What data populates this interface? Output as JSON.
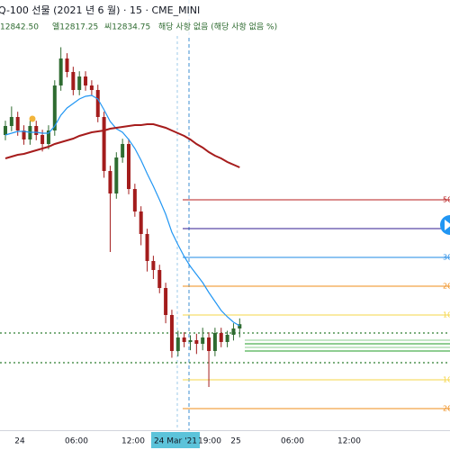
{
  "chart_data": {
    "type": "candlestick",
    "title": "Q-100 선물 (2021 년 6 월) · 15 · CME_MINI",
    "legend_values": [
      "12842.50",
      "엘12817.25",
      "씨12834.75",
      "해당 사항 없음 (해당 사항 없음 %)"
    ],
    "xtick_labels": [
      "24",
      "06:00",
      "12:00",
      "19:00",
      "25",
      "06:00",
      "12:00"
    ],
    "cursor_label": "24 Mar '21",
    "ylim": [
      12703,
      13267
    ],
    "up_color": "#2e6b30",
    "down_color": "#a31c1c",
    "open": [
      13087,
      13099,
      13111,
      13093,
      13081,
      13099,
      13087,
      13075,
      13093,
      13153,
      13189,
      13171,
      13147,
      13165,
      13153,
      13147,
      13111,
      13039,
      13009,
      13057,
      13075,
      13015,
      12985,
      12955,
      12919,
      12907,
      12883,
      12847,
      12799,
      12817,
      12811,
      12813.4,
      12808.6,
      12817,
      12799,
      12823,
      12811,
      12820.6,
      12829
    ],
    "high": [
      13106,
      13125,
      13118,
      13100,
      13106,
      13106,
      13094,
      13100,
      13160,
      13204,
      13196,
      13178,
      13172,
      13172,
      13160,
      13154,
      13118,
      13046,
      13064,
      13082,
      13082,
      13022,
      12992,
      12962,
      12926,
      12914,
      12890,
      12854,
      12826,
      12824,
      12820,
      12822,
      12830,
      12824,
      12830,
      12830,
      12826,
      12836,
      12842.5
    ],
    "low": [
      13080,
      13092,
      13086,
      13074,
      13074,
      13080,
      13065,
      13068,
      13086,
      13146,
      13164,
      13140,
      13140,
      13146,
      13140,
      13104,
      13030,
      12931,
      13002,
      13050,
      13008,
      12978,
      12940,
      12905,
      12895,
      12876,
      12836,
      12790,
      12792,
      12804,
      12800,
      12795,
      12800,
      12751,
      12792,
      12804,
      12804,
      12813,
      12817.25
    ],
    "close": [
      13099,
      13111,
      13093,
      13081,
      13099,
      13087,
      13075,
      13093,
      13153,
      13189,
      13171,
      13147,
      13165,
      13153,
      13147,
      13111,
      13039,
      13009,
      13057,
      13075,
      13015,
      12985,
      12955,
      12919,
      12907,
      12883,
      12847,
      12799,
      12817,
      12811,
      12813.4,
      12808.6,
      12817,
      12799,
      12823,
      12811,
      12820.6,
      12829,
      12834.75
    ],
    "overlays": [
      {
        "color": "#2196f3",
        "values": [
          13087,
          13089.4,
          13091.8,
          13091.8,
          13090.6,
          13090.6,
          13089.4,
          13089.4,
          13099,
          13113.4,
          13123,
          13129,
          13135,
          13138.6,
          13139.8,
          13135,
          13120.6,
          13105,
          13095.4,
          13090.6,
          13081,
          13069,
          13053.4,
          13035.4,
          13018.6,
          13000.6,
          12981.4,
          12957.4,
          12940.6,
          12925,
          12911.8,
          12901,
          12890.2,
          12877,
          12865,
          12853,
          12844.6,
          12837.4,
          12832.6
        ]
      },
      {
        "color": "#a61c1c",
        "values": [
          13055.8,
          13058.2,
          13060.6,
          13061.8,
          13064.2,
          13066.6,
          13069,
          13071.4,
          13075,
          13077.4,
          13079.8,
          13082.2,
          13085.8,
          13088.2,
          13090.6,
          13091.8,
          13093,
          13095.4,
          13096.6,
          13097.8,
          13099,
          13100.2,
          13100.2,
          13101.4,
          13101.4,
          13099,
          13096.6,
          13093,
          13089.4,
          13085.8,
          13081,
          13075,
          13070.2,
          13064.2,
          13059.4,
          13055.8,
          13051,
          13047.4,
          13043.8
        ]
      }
    ],
    "levels": [
      {
        "value": 13000.6,
        "color": "#b71c1c",
        "label": "50"
      },
      {
        "value": 12962.2,
        "color": "#311b92",
        "label": null
      },
      {
        "value": 12923.8,
        "color": "#1e88e5",
        "label": "30"
      },
      {
        "value": 12885.4,
        "color": "#ef8c1a",
        "label": "20"
      },
      {
        "value": 12847,
        "color": "#f5d547",
        "label": "10"
      },
      {
        "value": 12760.6,
        "color": "#f5d547",
        "label": "10"
      },
      {
        "value": 12722.2,
        "color": "#ef8c1a",
        "label": "20"
      }
    ],
    "dotted_lines": [
      12823,
      12783.4
    ],
    "zone_lines": [
      12813.4,
      12808.6,
      12803.8,
      12799
    ]
  }
}
